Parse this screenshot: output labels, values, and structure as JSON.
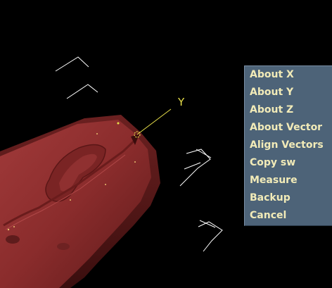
{
  "axis_label": "Y",
  "menu": {
    "items": [
      {
        "label": "About X"
      },
      {
        "label": "About Y"
      },
      {
        "label": "About Z"
      },
      {
        "label": "About Vector"
      },
      {
        "label": "Align Vectors"
      },
      {
        "label": "Copy sw"
      },
      {
        "label": "Measure"
      },
      {
        "label": "Backup"
      },
      {
        "label": "Cancel"
      }
    ]
  },
  "colors": {
    "background": "#000000",
    "model": "#8a2c2c",
    "menu_bg": "#4d6378",
    "menu_text": "#f2ebb8",
    "axis": "#e8e04a",
    "markers": "#ffffff"
  }
}
